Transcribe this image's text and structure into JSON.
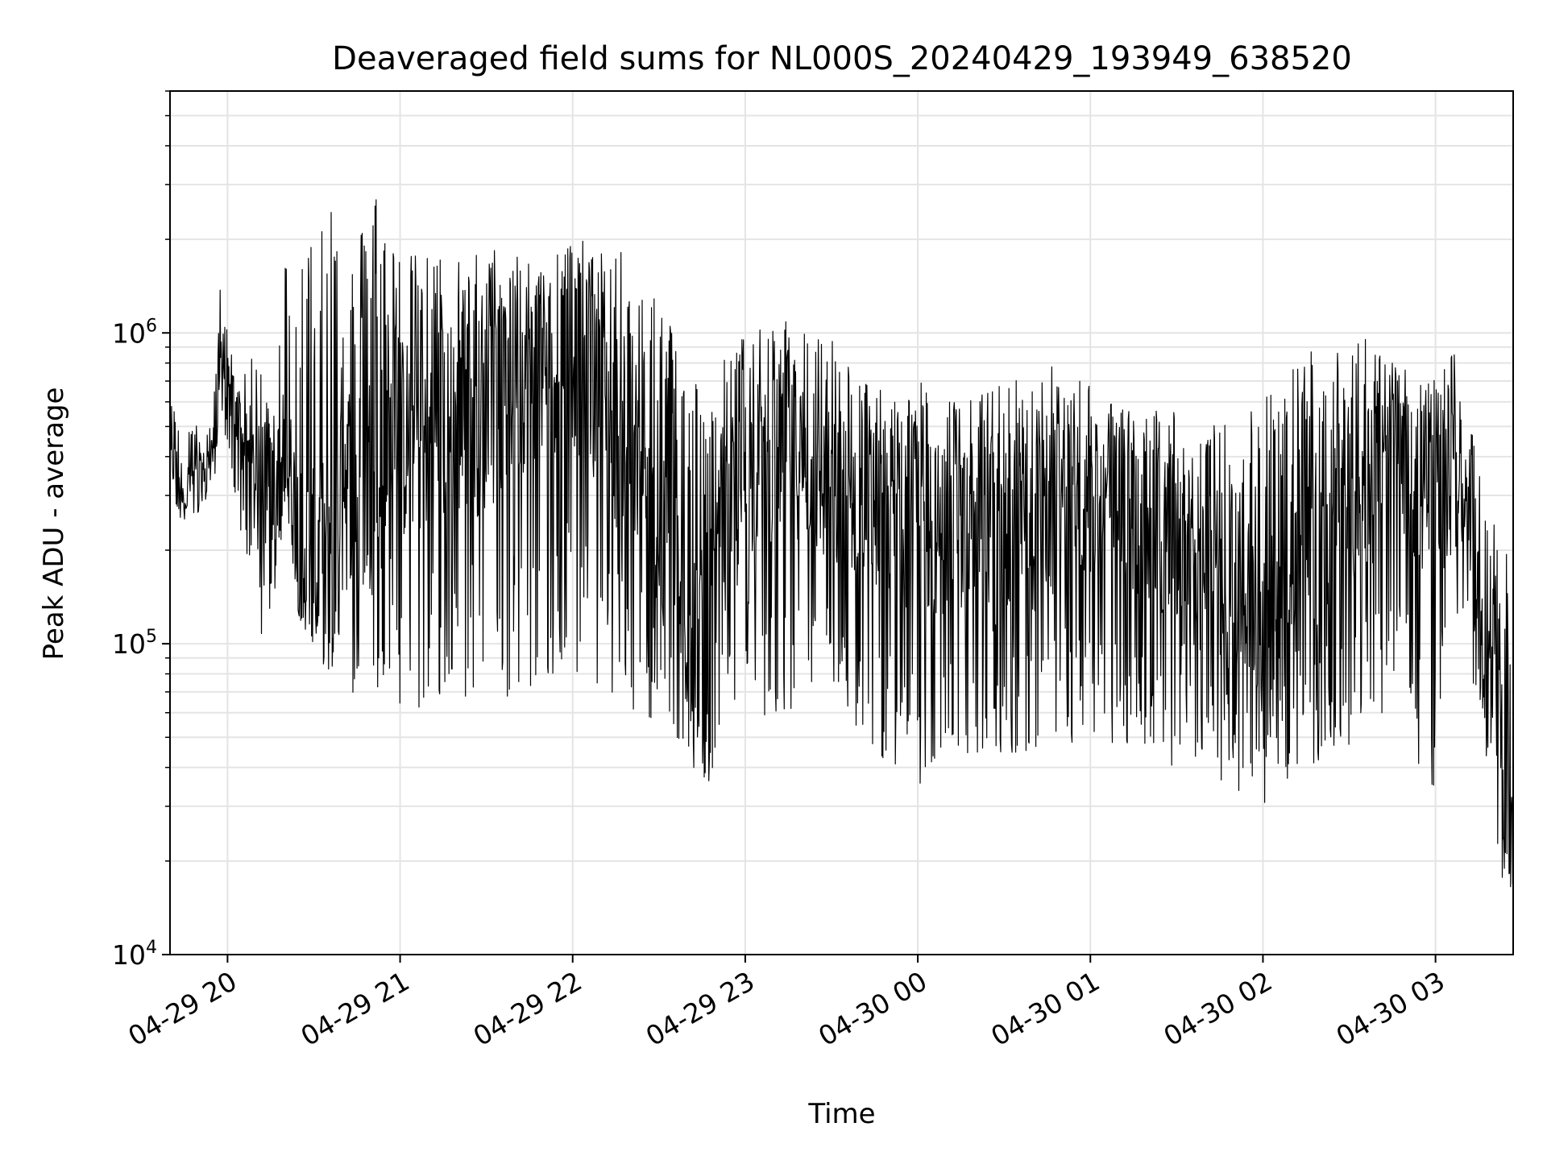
{
  "chart_data": {
    "type": "line",
    "title": "Deaveraged field sums for NL000S_20240429_193949_638520",
    "xlabel": "Time",
    "ylabel": "Peak ADU - average",
    "yscale": "log",
    "ylim": [
      10000,
      6000000
    ],
    "xlim": [
      "2024-04-29 19:40",
      "2024-04-30 03:27"
    ],
    "grid": true,
    "x_ticks": [
      {
        "time": "2024-04-29 20:00",
        "label": "04-29 20"
      },
      {
        "time": "2024-04-29 21:00",
        "label": "04-29 21"
      },
      {
        "time": "2024-04-29 22:00",
        "label": "04-29 22"
      },
      {
        "time": "2024-04-29 23:00",
        "label": "04-29 23"
      },
      {
        "time": "2024-04-30 00:00",
        "label": "04-30 00"
      },
      {
        "time": "2024-04-30 01:00",
        "label": "04-30 01"
      },
      {
        "time": "2024-04-30 02:00",
        "label": "04-30 02"
      },
      {
        "time": "2024-04-30 03:00",
        "label": "04-30 03"
      }
    ],
    "y_ticks": [
      {
        "value": 10000,
        "base": "10",
        "exp": "4"
      },
      {
        "value": 100000,
        "base": "10",
        "exp": "5"
      },
      {
        "value": 1000000,
        "base": "10",
        "exp": "6"
      }
    ],
    "series": [
      {
        "color": "#000000",
        "x": [
          "2024-04-29 19:40",
          "2024-04-29 19:45",
          "2024-04-29 19:50",
          "2024-04-29 19:55",
          "2024-04-29 19:57",
          "2024-04-29 20:00",
          "2024-04-29 20:05",
          "2024-04-29 20:10",
          "2024-04-29 20:15",
          "2024-04-29 20:20",
          "2024-04-29 20:25",
          "2024-04-29 20:30",
          "2024-04-29 20:35",
          "2024-04-29 20:40",
          "2024-04-29 20:45",
          "2024-04-29 20:50",
          "2024-04-29 21:00",
          "2024-04-29 21:15",
          "2024-04-29 21:30",
          "2024-04-29 21:45",
          "2024-04-29 22:00",
          "2024-04-29 22:15",
          "2024-04-29 22:30",
          "2024-04-29 22:45",
          "2024-04-29 23:00",
          "2024-04-29 23:15",
          "2024-04-29 23:30",
          "2024-04-29 23:45",
          "2024-04-30 00:00",
          "2024-04-30 00:15",
          "2024-04-30 00:30",
          "2024-04-30 00:45",
          "2024-04-30 01:00",
          "2024-04-30 01:15",
          "2024-04-30 01:30",
          "2024-04-30 01:45",
          "2024-04-30 02:00",
          "2024-04-30 02:15",
          "2024-04-30 02:30",
          "2024-04-30 02:45",
          "2024-04-30 03:00",
          "2024-04-30 03:05",
          "2024-04-30 03:10",
          "2024-04-30 03:15",
          "2024-04-30 03:20",
          "2024-04-30 03:25",
          "2024-04-30 03:27"
        ],
        "values": [
          400000,
          320000,
          350000,
          400000,
          950000,
          700000,
          450000,
          320000,
          280000,
          450000,
          220000,
          180000,
          170000,
          400000,
          300000,
          350000,
          450000,
          500000,
          550000,
          800000,
          900000,
          500000,
          200000,
          100000,
          350000,
          450000,
          300000,
          280000,
          250000,
          220000,
          200000,
          250000,
          300000,
          250000,
          180000,
          150000,
          130000,
          200000,
          300000,
          350000,
          300000,
          600000,
          250000,
          150000,
          60000,
          35000,
          20000
        ],
        "peaks": [
          600000,
          550000,
          500000,
          500000,
          1700000,
          1000000,
          700000,
          900000,
          600000,
          1800000,
          2000000,
          2300000,
          4800000,
          1900000,
          1800000,
          3800000,
          1800000,
          1800000,
          1900000,
          1900000,
          2000000,
          1900000,
          1400000,
          700000,
          1000000,
          1100000,
          1000000,
          650000,
          700000,
          600000,
          700000,
          800000,
          700000,
          550000,
          600000,
          500000,
          650000,
          900000,
          1200000,
          800000,
          700000,
          1250000,
          500000,
          450000,
          250000,
          200000,
          55000
        ],
        "troughs": [
          250000,
          250000,
          260000,
          300000,
          500000,
          450000,
          200000,
          90000,
          120000,
          250000,
          120000,
          100000,
          80000,
          65000,
          60000,
          70000,
          55000,
          60000,
          70000,
          65000,
          80000,
          65000,
          50000,
          32000,
          55000,
          60000,
          65000,
          45000,
          30000,
          45000,
          40000,
          45000,
          50000,
          45000,
          40000,
          35000,
          30000,
          40000,
          45000,
          60000,
          30000,
          160000,
          100000,
          60000,
          25000,
          13000,
          15000
        ]
      }
    ]
  }
}
